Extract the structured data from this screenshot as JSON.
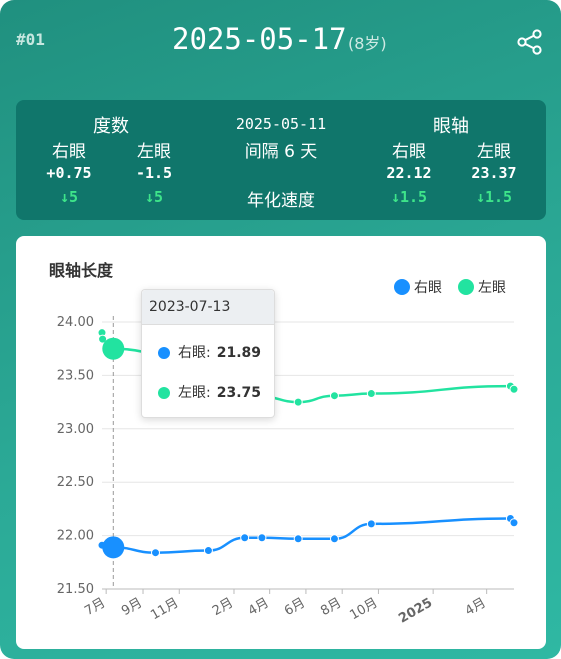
{
  "header": {
    "index": "#01",
    "date": "2025-05-17",
    "age": "(8岁)",
    "share_icon": "share-icon"
  },
  "stats": {
    "degree_title": "度数",
    "axis_title": "眼轴",
    "right_eye": "右眼",
    "left_eye": "左眼",
    "degree_right": "+0.75",
    "degree_left": "-1.5",
    "degree_right_change": "↓5",
    "degree_left_change": "↓5",
    "prev_date": "2025-05-11",
    "interval": "间隔 6 天",
    "annual_speed": "年化速度",
    "axis_right": "22.12",
    "axis_left": "23.37",
    "axis_right_change": "↓1.5",
    "axis_left_change": "↓1.5"
  },
  "tooltip": {
    "date": "2023-07-13",
    "right_label": "右眼:",
    "right_value": "21.89",
    "left_label": "左眼:",
    "left_value": "23.75"
  },
  "colors": {
    "right": "#1890ff",
    "left": "#22e3a0",
    "accent": "#2ba996"
  },
  "chart_data": {
    "type": "line",
    "title": "眼轴长度",
    "legend": [
      "右眼",
      "左眼"
    ],
    "legend_position": "top-right",
    "ylim": [
      21.5,
      24.0
    ],
    "yticks": [
      "24.00",
      "23.50",
      "23.00",
      "22.50",
      "22.00",
      "21.50"
    ],
    "xticks": [
      "7月",
      "9月",
      "11月",
      "2月",
      "4月",
      "6月",
      "8月",
      "10月",
      "2025",
      "4月"
    ],
    "xrange": [
      "2023-06-24",
      "2025-05-17"
    ],
    "grid": true,
    "highlight_date": "2023-07-13",
    "series": [
      {
        "name": "右眼",
        "data": [
          [
            "2023-06-24",
            21.91
          ],
          [
            "2023-07-13",
            21.89
          ],
          [
            "2023-09-22",
            21.84
          ],
          [
            "2023-12-20",
            21.86
          ],
          [
            "2024-02-19",
            21.98
          ],
          [
            "2024-03-19",
            21.98
          ],
          [
            "2024-05-19",
            21.97
          ],
          [
            "2024-07-19",
            21.97
          ],
          [
            "2024-09-19",
            22.11
          ],
          [
            "2025-05-11",
            22.16
          ],
          [
            "2025-05-17",
            22.12
          ]
        ]
      },
      {
        "name": "左眼",
        "data": [
          [
            "2023-06-24",
            23.9
          ],
          [
            "2023-06-25",
            23.84
          ],
          [
            "2023-07-13",
            23.75
          ],
          [
            "2024-03-19",
            23.3
          ],
          [
            "2024-05-19",
            23.25
          ],
          [
            "2024-07-19",
            23.31
          ],
          [
            "2024-09-19",
            23.33
          ],
          [
            "2025-05-11",
            23.4
          ],
          [
            "2025-05-17",
            23.37
          ]
        ]
      }
    ]
  }
}
